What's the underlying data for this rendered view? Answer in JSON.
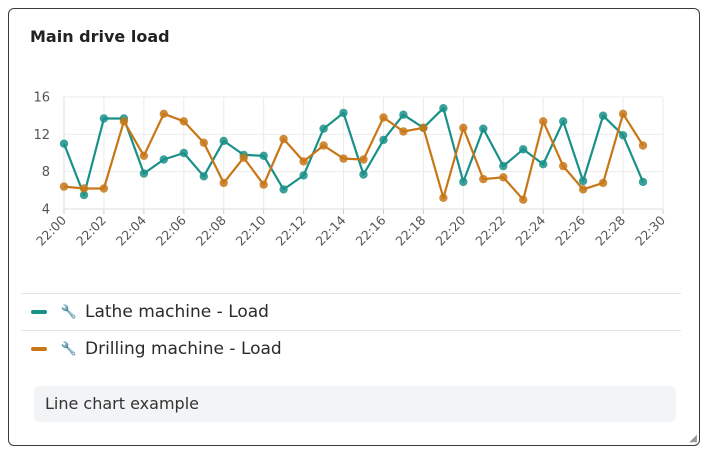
{
  "card": {
    "title": "Main drive load",
    "footer_text": "Line chart example"
  },
  "chart_data": {
    "type": "line",
    "title": "Main drive load",
    "xlabel": "",
    "ylabel": "",
    "x": [
      "22:00",
      "22:01",
      "22:02",
      "22:03",
      "22:04",
      "22:05",
      "22:06",
      "22:07",
      "22:08",
      "22:09",
      "22:10",
      "22:11",
      "22:12",
      "22:13",
      "22:14",
      "22:15",
      "22:16",
      "22:17",
      "22:18",
      "22:19",
      "22:20",
      "22:21",
      "22:22",
      "22:23",
      "22:24",
      "22:25",
      "22:26",
      "22:27",
      "22:28",
      "22:29"
    ],
    "xticks": [
      "22:00",
      "22:02",
      "22:04",
      "22:06",
      "22:08",
      "22:10",
      "22:12",
      "22:14",
      "22:16",
      "22:18",
      "22:20",
      "22:22",
      "22:24",
      "22:26",
      "22:28",
      "22:30"
    ],
    "xlim": [
      "22:00",
      "22:30"
    ],
    "yticks": [
      4,
      8,
      12,
      16
    ],
    "ylim": [
      4,
      16
    ],
    "grid": true,
    "legend": "bottom",
    "series": [
      {
        "name": "Lathe machine - Load",
        "color": "#1a9188",
        "values": [
          11.0,
          5.5,
          13.7,
          13.7,
          7.8,
          9.3,
          10.0,
          7.5,
          11.3,
          9.8,
          9.7,
          6.1,
          7.6,
          12.6,
          14.3,
          7.7,
          11.4,
          14.1,
          12.7,
          14.8,
          6.9,
          12.6,
          8.6,
          10.4,
          8.8,
          13.4,
          7.0,
          14.0,
          11.9,
          6.9
        ]
      },
      {
        "name": "Drilling machine - Load",
        "color": "#c87718",
        "values": [
          6.4,
          6.2,
          6.2,
          13.4,
          9.7,
          14.2,
          13.4,
          11.1,
          6.8,
          9.5,
          6.6,
          11.5,
          9.1,
          10.8,
          9.4,
          9.3,
          13.8,
          12.3,
          12.7,
          5.2,
          12.7,
          7.2,
          7.4,
          5.0,
          13.4,
          8.6,
          6.1,
          6.8,
          14.2,
          10.8
        ]
      }
    ]
  },
  "legend_icon": "wrench-icon"
}
